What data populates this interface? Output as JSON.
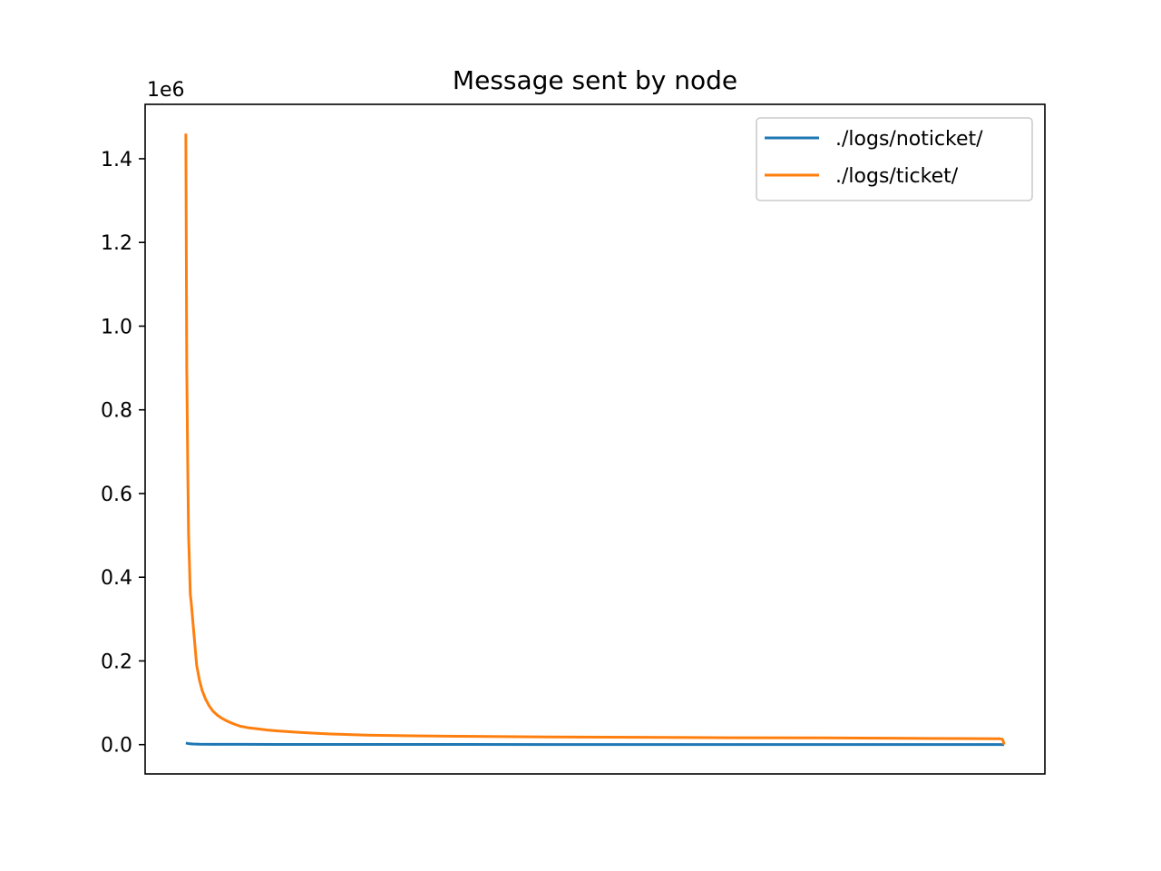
{
  "chart_data": {
    "type": "line",
    "title": "Message sent by node",
    "xlabel": "",
    "ylabel": "",
    "y_offset_label": "1e6",
    "x_ticks_visible": false,
    "xlim": [
      -45,
      950
    ],
    "ylim": [
      -70000,
      1530000
    ],
    "yticks": [
      0,
      200000,
      400000,
      600000,
      800000,
      1000000,
      1200000,
      1400000
    ],
    "ytick_labels": [
      "0.0",
      "0.2",
      "0.4",
      "0.6",
      "0.8",
      "1.0",
      "1.2",
      "1.4"
    ],
    "grid": false,
    "legend_position": "top-right",
    "series": [
      {
        "name": "./logs/noticket/",
        "color": "#1f77b4",
        "x": [
          0,
          3,
          8,
          15,
          30,
          60,
          100,
          200,
          400,
          600,
          800,
          900,
          905
        ],
        "y": [
          4000,
          2500,
          1500,
          1000,
          700,
          600,
          500,
          400,
          300,
          300,
          300,
          200,
          0
        ]
      },
      {
        "name": "./logs/ticket/",
        "color": "#ff7f0e",
        "x": [
          0,
          1,
          2,
          3,
          4,
          5,
          6,
          8,
          10,
          12,
          15,
          18,
          22,
          26,
          30,
          35,
          40,
          45,
          50,
          55,
          60,
          70,
          80,
          90,
          100,
          120,
          140,
          160,
          180,
          200,
          250,
          300,
          400,
          500,
          600,
          700,
          800,
          850,
          900,
          903,
          904,
          905
        ],
        "y": [
          1460000,
          900000,
          680000,
          500000,
          430000,
          360000,
          340000,
          290000,
          240000,
          190000,
          155000,
          130000,
          108000,
          92000,
          80000,
          70000,
          63000,
          57000,
          52000,
          48000,
          44000,
          40000,
          37500,
          35000,
          33000,
          30000,
          27500,
          25500,
          24000,
          22500,
          21000,
          20000,
          18500,
          17500,
          16500,
          16000,
          15000,
          14500,
          14000,
          13000,
          8000,
          0
        ]
      }
    ]
  }
}
